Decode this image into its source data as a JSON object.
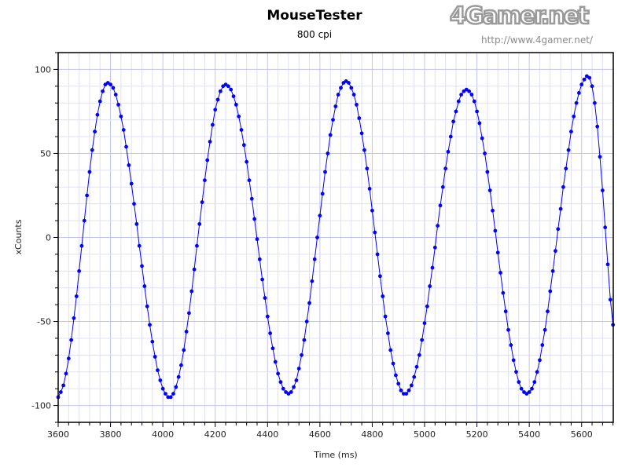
{
  "chart_data": {
    "type": "scatter",
    "title": "MouseTester",
    "subtitle": "800 cpi",
    "xlabel": "Time (ms)",
    "ylabel": "xCounts",
    "xlim": [
      3600,
      5721
    ],
    "ylim": [
      -110,
      110
    ],
    "xticks": [
      3600,
      3800,
      4000,
      4200,
      4400,
      4600,
      4800,
      5000,
      5200,
      5400,
      5600
    ],
    "yticks": [
      100,
      50,
      0,
      -50,
      -100
    ],
    "grid": true,
    "legend": "none",
    "marker_color": "#0000ff",
    "line_color": "#0000ff",
    "series": [
      {
        "x": [
          3600,
          3610,
          3620,
          3630,
          3640,
          3650,
          3660,
          3670,
          3680,
          3690,
          3700,
          3710,
          3720,
          3730,
          3740,
          3750,
          3760,
          3770,
          3780,
          3790,
          3800,
          3810,
          3820,
          3830,
          3840,
          3850,
          3860,
          3870,
          3880,
          3890,
          3900,
          3910,
          3920,
          3930,
          3940,
          3950,
          3960,
          3970,
          3980,
          3990,
          4000,
          4010,
          4020,
          4030,
          4040,
          4050,
          4060,
          4070,
          4080,
          4090,
          4100,
          4110,
          4120,
          4130,
          4140,
          4150,
          4160,
          4170,
          4180,
          4190,
          4200,
          4210,
          4220,
          4230,
          4240,
          4250,
          4260,
          4270,
          4280,
          4290,
          4300,
          4310,
          4320,
          4330,
          4340,
          4350,
          4360,
          4370,
          4380,
          4390,
          4400,
          4410,
          4420,
          4430,
          4440,
          4450,
          4460,
          4470,
          4480,
          4490,
          4500,
          4510,
          4520,
          4530,
          4540,
          4550,
          4560,
          4570,
          4580,
          4590,
          4600,
          4610,
          4620,
          4630,
          4640,
          4650,
          4660,
          4670,
          4680,
          4690,
          4700,
          4710,
          4720,
          4730,
          4740,
          4750,
          4760,
          4770,
          4780,
          4790,
          4800,
          4810,
          4820,
          4830,
          4840,
          4850,
          4860,
          4870,
          4880,
          4890,
          4900,
          4910,
          4920,
          4930,
          4940,
          4950,
          4960,
          4970,
          4980,
          4990,
          5000,
          5010,
          5020,
          5030,
          5040,
          5050,
          5060,
          5070,
          5080,
          5090,
          5100,
          5110,
          5120,
          5130,
          5140,
          5150,
          5160,
          5170,
          5180,
          5190,
          5200,
          5210,
          5220,
          5230,
          5240,
          5250,
          5260,
          5270,
          5280,
          5290,
          5300,
          5310,
          5320,
          5330,
          5340,
          5350,
          5360,
          5370,
          5380,
          5390,
          5400,
          5410,
          5420,
          5430,
          5440,
          5450,
          5460,
          5470,
          5480,
          5490,
          5500,
          5510,
          5520,
          5530,
          5540,
          5550,
          5560,
          5570,
          5580,
          5590,
          5600,
          5610,
          5620,
          5630,
          5640,
          5650,
          5660,
          5670,
          5680,
          5690,
          5700,
          5710,
          5720
        ],
        "y": [
          -95,
          -92,
          -88,
          -81,
          -72,
          -61,
          -48,
          -35,
          -20,
          -5,
          10,
          25,
          39,
          52,
          63,
          73,
          81,
          87,
          91,
          92,
          91,
          89,
          85,
          79,
          72,
          64,
          54,
          43,
          32,
          20,
          8,
          -5,
          -17,
          -29,
          -41,
          -52,
          -62,
          -71,
          -79,
          -85,
          -90,
          -93,
          -95,
          -95,
          -93,
          -89,
          -83,
          -76,
          -67,
          -56,
          -45,
          -32,
          -19,
          -5,
          8,
          21,
          34,
          46,
          57,
          67,
          76,
          82,
          87,
          90,
          91,
          90,
          88,
          84,
          79,
          72,
          64,
          55,
          45,
          34,
          23,
          11,
          -1,
          -13,
          -25,
          -36,
          -47,
          -57,
          -66,
          -74,
          -81,
          -86,
          -90,
          -92,
          -93,
          -92,
          -89,
          -85,
          -78,
          -70,
          -61,
          -50,
          -39,
          -26,
          -13,
          0,
          13,
          26,
          39,
          50,
          61,
          70,
          78,
          85,
          89,
          92,
          93,
          92,
          89,
          85,
          79,
          71,
          62,
          52,
          41,
          29,
          16,
          3,
          -10,
          -23,
          -35,
          -47,
          -57,
          -67,
          -75,
          -82,
          -87,
          -91,
          -93,
          -93,
          -91,
          -88,
          -83,
          -77,
          -70,
          -61,
          -51,
          -41,
          -29,
          -18,
          -6,
          7,
          19,
          30,
          41,
          51,
          60,
          69,
          75,
          81,
          85,
          87,
          88,
          87,
          85,
          81,
          75,
          68,
          59,
          50,
          39,
          28,
          16,
          4,
          -9,
          -21,
          -33,
          -44,
          -55,
          -64,
          -73,
          -80,
          -86,
          -90,
          -92,
          -93,
          -92,
          -90,
          -86,
          -80,
          -73,
          -64,
          -55,
          -44,
          -32,
          -20,
          -8,
          5,
          17,
          30,
          41,
          52,
          63,
          72,
          80,
          86,
          91,
          94,
          96,
          95,
          90,
          80,
          66,
          48,
          28,
          6,
          -16,
          -37,
          -52
        ]
      }
    ]
  },
  "watermark": {
    "logo": "4Gamer.net",
    "url": "http://www.4gamer.net/"
  }
}
